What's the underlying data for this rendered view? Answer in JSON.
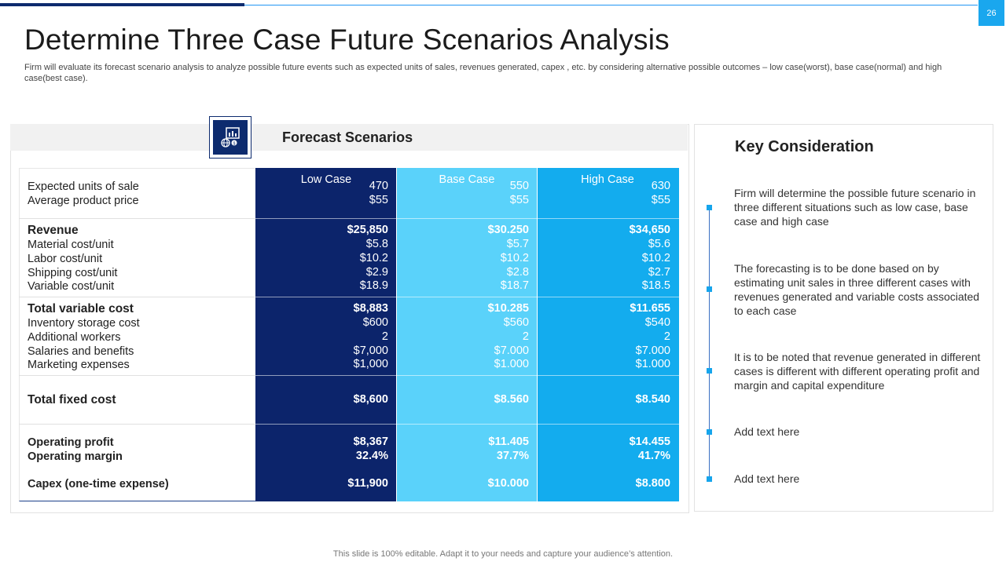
{
  "page_number": "26",
  "title": "Determine Three Case Future Scenarios Analysis",
  "subtitle": "Firm will evaluate its forecast scenario analysis to analyze possible future events such as expected units of sales, revenues generated, capex , etc. by considering alternative possible outcomes – low case(worst), base case(normal) and high case(best case).",
  "forecast": {
    "title": "Forecast Scenarios",
    "icon": "finance-chart-globe-icon",
    "columns": [
      "Low Case",
      "Base Case",
      "High  Case"
    ],
    "colors": {
      "low": "#0c246b",
      "base": "#5ad2fa",
      "high": "#13acee"
    },
    "rows": [
      {
        "label": "Expected units of sale",
        "bold": false,
        "values": [
          "470",
          "550",
          "630"
        ]
      },
      {
        "label": "Average product price",
        "bold": false,
        "values": [
          "$55",
          "$55",
          "$55"
        ]
      },
      {
        "label": "Revenue",
        "bold": true,
        "values": [
          "$25,850",
          "$30.250",
          "$34,650"
        ]
      },
      {
        "label": "Material cost/unit",
        "bold": false,
        "values": [
          "$5.8",
          "$5.7",
          "$5.6"
        ]
      },
      {
        "label": "Labor cost/unit",
        "bold": false,
        "values": [
          "$10.2",
          "$10.2",
          "$10.2"
        ]
      },
      {
        "label": "Shipping cost/unit",
        "bold": false,
        "values": [
          "$2.9",
          "$2.8",
          "$2.7"
        ]
      },
      {
        "label": "Variable cost/unit",
        "bold": false,
        "values": [
          "$18.9",
          "$18.7",
          "$18.5"
        ]
      },
      {
        "label": "Total variable cost",
        "bold": true,
        "values": [
          "$8,883",
          "$10.285",
          "$11.655"
        ]
      },
      {
        "label": "Inventory storage cost",
        "bold": false,
        "values": [
          "$600",
          "$560",
          "$540"
        ]
      },
      {
        "label": "Additional workers",
        "bold": false,
        "values": [
          "2",
          "2",
          "2"
        ]
      },
      {
        "label": "Salaries and benefits",
        "bold": false,
        "values": [
          "$7,000",
          "$7.000",
          "$7.000"
        ]
      },
      {
        "label": "Marketing expenses",
        "bold": false,
        "values": [
          "$1,000",
          "$1.000",
          "$1.000"
        ]
      },
      {
        "label": "Total fixed cost",
        "bold": true,
        "values": [
          "$8,600",
          "$8.560",
          "$8.540"
        ]
      },
      {
        "label": "Operating profit",
        "bold": true,
        "values": [
          "$8,367",
          "$11.405",
          "$14.455"
        ]
      },
      {
        "label": "Operating margin",
        "bold": true,
        "values": [
          "32.4%",
          "37.7%",
          "41.7%"
        ]
      },
      {
        "label": "Capex (one-time expense)",
        "bold": true,
        "values": [
          "$11,900",
          "$10.000",
          "$8.800"
        ]
      }
    ]
  },
  "key_consideration": {
    "title": "Key Consideration",
    "points": [
      "Firm will determine the possible future scenario in three different situations such as low case, base case and high case",
      "The forecasting is to be done based on by estimating unit sales in three different cases with revenues generated  and variable costs associated to each case",
      "It is to be noted that revenue generated in different cases is different with different operating profit and margin and capital expenditure",
      "Add text here",
      "Add text here"
    ]
  },
  "footer": "This slide is 100% editable. Adapt it to your needs and capture your audience’s attention."
}
